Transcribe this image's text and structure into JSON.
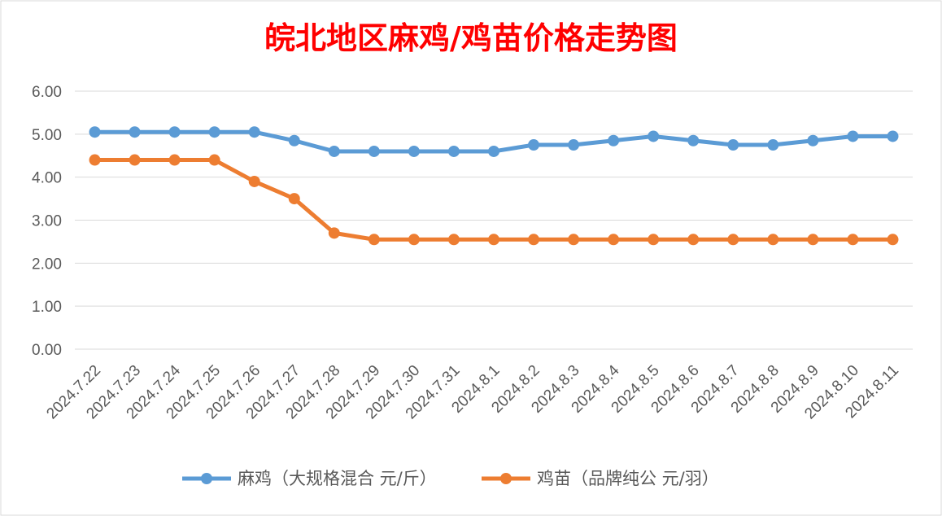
{
  "chart_data": {
    "type": "line",
    "title": "皖北地区麻鸡/鸡苗价格走势图",
    "xlabel": "",
    "ylabel": "",
    "ylim": [
      0,
      6
    ],
    "yticks": [
      "0.00",
      "1.00",
      "2.00",
      "3.00",
      "4.00",
      "5.00",
      "6.00"
    ],
    "grid": true,
    "legend_position": "bottom",
    "categories": [
      "2024.7.22",
      "2024.7.23",
      "2024.7.24",
      "2024.7.25",
      "2024.7.26",
      "2024.7.27",
      "2024.7.28",
      "2024.7.29",
      "2024.7.30",
      "2024.7.31",
      "2024.8.1",
      "2024.8.2",
      "2024.8.3",
      "2024.8.4",
      "2024.8.5",
      "2024.8.6",
      "2024.8.7",
      "2024.8.8",
      "2024.8.9",
      "2024.8.10",
      "2024.8.11"
    ],
    "series": [
      {
        "name": "麻鸡（大规格混合 元/斤）",
        "color": "#5B9BD5",
        "values": [
          5.05,
          5.05,
          5.05,
          5.05,
          5.05,
          4.85,
          4.6,
          4.6,
          4.6,
          4.6,
          4.6,
          4.75,
          4.75,
          4.85,
          4.95,
          4.85,
          4.75,
          4.75,
          4.85,
          4.95,
          4.95
        ]
      },
      {
        "name": "鸡苗（品牌纯公 元/羽）",
        "color": "#ED7D31",
        "values": [
          4.4,
          4.4,
          4.4,
          4.4,
          3.9,
          3.5,
          2.7,
          2.55,
          2.55,
          2.55,
          2.55,
          2.55,
          2.55,
          2.55,
          2.55,
          2.55,
          2.55,
          2.55,
          2.55,
          2.55,
          2.55
        ]
      }
    ],
    "title_color": "#FF0000",
    "grid_color": "#D9D9D9",
    "text_color": "#595959"
  }
}
